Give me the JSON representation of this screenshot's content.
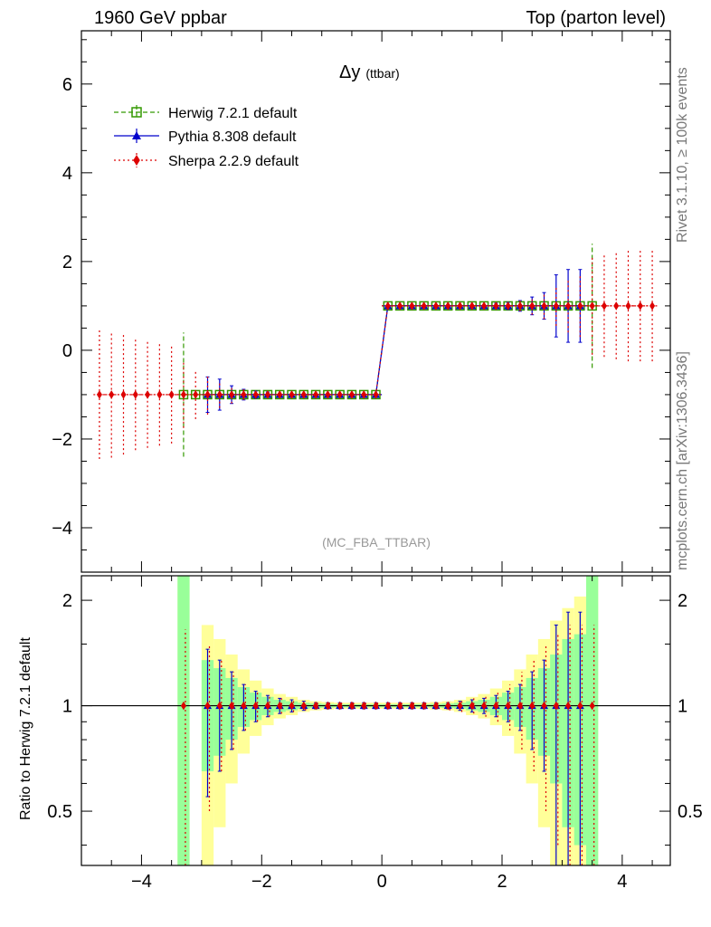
{
  "header": {
    "left": "1960 GeV ppbar",
    "right": "Top (parton level)"
  },
  "side_labels": {
    "rivet": "Rivet 3.1.10, ≥ 100k events",
    "mcplots": "mcplots.cern.ch [arXiv:1306.3436]"
  },
  "chart_data": [
    {
      "type": "scatter",
      "title": "Δy",
      "title_suffix": "(ttbar)",
      "watermark": "(MC_FBA_TTBAR)",
      "xlim": [
        -5.0,
        4.8
      ],
      "ylim": [
        -5.0,
        7.2
      ],
      "xticks": [
        -4,
        -2,
        0,
        2,
        4
      ],
      "xticklabels": [
        "−4",
        "−2",
        "0",
        "2",
        "4"
      ],
      "yticks": [
        -4,
        -2,
        0,
        2,
        4,
        6
      ],
      "yticklabels": [
        "−4",
        "−2",
        "0",
        "2",
        "4",
        "6"
      ],
      "legend_position": "top-left",
      "series": [
        {
          "name": "Herwig 7.2.1 default",
          "color": "#339900",
          "marker": "open-square",
          "line": "dashed",
          "x": [
            -3.3,
            -3.1,
            -2.9,
            -2.7,
            -2.5,
            -2.3,
            -2.1,
            -1.9,
            -1.7,
            -1.5,
            -1.3,
            -1.1,
            -0.9,
            -0.7,
            -0.5,
            -0.3,
            -0.1,
            0.1,
            0.3,
            0.5,
            0.7,
            0.9,
            1.1,
            1.3,
            1.5,
            1.7,
            1.9,
            2.1,
            2.3,
            2.5,
            2.7,
            2.9,
            3.1,
            3.3,
            3.5
          ],
          "y": [
            -1,
            -1,
            -1,
            -1,
            -1,
            -1,
            -1,
            -1,
            -1,
            -1,
            -1,
            -1,
            -1,
            -1,
            -1,
            -1,
            -1,
            1,
            1,
            1,
            1,
            1,
            1,
            1,
            1,
            1,
            1,
            1,
            1,
            1,
            1,
            1,
            1,
            1,
            1
          ],
          "err": [
            1.4,
            0.02,
            0.02,
            0.02,
            0.02,
            0.02,
            0.02,
            0.02,
            0.02,
            0.02,
            0.02,
            0.02,
            0.02,
            0.02,
            0.02,
            0.02,
            0.02,
            0.02,
            0.02,
            0.02,
            0.02,
            0.02,
            0.02,
            0.02,
            0.02,
            0.02,
            0.02,
            0.02,
            0.02,
            0.02,
            0.02,
            0.02,
            0.02,
            0.02,
            1.4
          ]
        },
        {
          "name": "Pythia 8.308 default",
          "color": "#0000cc",
          "marker": "filled-triangle",
          "line": "solid",
          "x": [
            -2.9,
            -2.7,
            -2.5,
            -2.3,
            -2.1,
            -1.9,
            -1.7,
            -1.5,
            -1.3,
            -1.1,
            -0.9,
            -0.7,
            -0.5,
            -0.3,
            -0.1,
            0.1,
            0.3,
            0.5,
            0.7,
            0.9,
            1.1,
            1.3,
            1.5,
            1.7,
            1.9,
            2.1,
            2.3,
            2.5,
            2.7,
            2.9,
            3.1,
            3.3
          ],
          "y": [
            -1,
            -1,
            -1,
            -1,
            -1,
            -1,
            -1,
            -1,
            -1,
            -1,
            -1,
            -1,
            -1,
            -1,
            -1,
            1,
            1,
            1,
            1,
            1,
            1,
            1,
            1,
            1,
            1,
            1,
            1,
            1,
            1,
            1,
            1,
            1
          ],
          "err": [
            0.4,
            0.35,
            0.2,
            0.12,
            0.08,
            0.06,
            0.05,
            0.04,
            0.03,
            0.03,
            0.03,
            0.03,
            0.03,
            0.03,
            0.03,
            0.03,
            0.03,
            0.03,
            0.03,
            0.03,
            0.03,
            0.03,
            0.04,
            0.05,
            0.06,
            0.08,
            0.12,
            0.2,
            0.3,
            0.7,
            0.82,
            0.82
          ]
        },
        {
          "name": "Sherpa 2.2.9 default",
          "color": "#dd0000",
          "marker": "filled-diamond",
          "line": "dotted",
          "x": [
            -4.7,
            -4.5,
            -4.3,
            -4.1,
            -3.9,
            -3.7,
            -3.5,
            -3.3,
            -3.1,
            -2.9,
            -2.7,
            -2.5,
            -2.3,
            -2.1,
            -1.9,
            -1.7,
            -1.5,
            -1.3,
            -1.1,
            -0.9,
            -0.7,
            -0.5,
            -0.3,
            -0.1,
            0.1,
            0.3,
            0.5,
            0.7,
            0.9,
            1.1,
            1.3,
            1.5,
            1.7,
            1.9,
            2.1,
            2.3,
            2.5,
            2.7,
            2.9,
            3.1,
            3.3,
            3.5,
            3.7,
            3.9,
            4.1,
            4.3,
            4.5
          ],
          "y": [
            -1,
            -1,
            -1,
            -1,
            -1,
            -1,
            -1,
            -1,
            -1,
            -1,
            -1,
            -1,
            -1,
            -1,
            -1,
            -1,
            -1,
            -1,
            -1,
            -1,
            -1,
            -1,
            -1,
            -1,
            1,
            1,
            1,
            1,
            1,
            1,
            1,
            1,
            1,
            1,
            1,
            1,
            1,
            1,
            1,
            1,
            1,
            1,
            1,
            1,
            1,
            1,
            1
          ],
          "err": [
            1.45,
            1.42,
            1.35,
            1.25,
            1.2,
            1.15,
            1.1,
            0.75,
            0.55,
            0.45,
            0.3,
            0.2,
            0.12,
            0.08,
            0.06,
            0.05,
            0.04,
            0.03,
            0.03,
            0.03,
            0.03,
            0.03,
            0.03,
            0.03,
            0.03,
            0.03,
            0.03,
            0.03,
            0.03,
            0.03,
            0.03,
            0.04,
            0.05,
            0.06,
            0.08,
            0.12,
            0.2,
            0.3,
            0.45,
            0.6,
            0.7,
            1.1,
            1.15,
            1.2,
            1.25,
            1.25,
            1.25
          ]
        }
      ]
    },
    {
      "type": "scatter",
      "ylabel": "Ratio to Herwig 7.2.1 default",
      "xlim": [
        -5.0,
        4.8
      ],
      "ylim": [
        0.35,
        2.35
      ],
      "xticks": [
        -4,
        -2,
        0,
        2,
        4
      ],
      "xticklabels": [
        "−4",
        "−2",
        "0",
        "2",
        "4"
      ],
      "yticks": [
        0.5,
        1,
        2
      ],
      "yticklabels": [
        "0.5",
        "1",
        "2"
      ],
      "reference_line": 1.0,
      "bands": {
        "x": [
          -3.3,
          -2.9,
          -2.7,
          -2.5,
          -2.3,
          -2.1,
          -1.9,
          -1.7,
          -1.5,
          -1.3,
          -1.1,
          -0.9,
          -0.7,
          -0.5,
          -0.3,
          -0.1,
          0.1,
          0.3,
          0.5,
          0.7,
          0.9,
          1.1,
          1.3,
          1.5,
          1.7,
          1.9,
          2.1,
          2.3,
          2.5,
          2.7,
          2.9,
          3.1,
          3.3,
          3.5
        ],
        "green_halfwidth": [
          2.0,
          0.35,
          0.28,
          0.2,
          0.13,
          0.09,
          0.06,
          0.04,
          0.03,
          0.02,
          0.015,
          0.012,
          0.01,
          0.01,
          0.01,
          0.01,
          0.01,
          0.01,
          0.01,
          0.01,
          0.012,
          0.015,
          0.02,
          0.03,
          0.04,
          0.06,
          0.09,
          0.13,
          0.2,
          0.28,
          0.4,
          0.55,
          0.6,
          2.0
        ],
        "yellow_halfwidth": [
          2.0,
          0.7,
          0.55,
          0.4,
          0.27,
          0.18,
          0.12,
          0.08,
          0.06,
          0.04,
          0.03,
          0.025,
          0.02,
          0.02,
          0.02,
          0.02,
          0.02,
          0.02,
          0.02,
          0.02,
          0.025,
          0.03,
          0.04,
          0.06,
          0.08,
          0.12,
          0.18,
          0.27,
          0.4,
          0.55,
          0.75,
          0.9,
          1.05,
          2.0
        ]
      },
      "series": [
        {
          "name": "Pythia 8.308 default",
          "color": "#0000cc",
          "x": [
            -2.9,
            -2.7,
            -2.5,
            -2.3,
            -2.1,
            -1.9,
            -1.7,
            -1.5,
            -1.3,
            -1.1,
            -0.9,
            -0.7,
            -0.5,
            -0.3,
            -0.1,
            0.1,
            0.3,
            0.5,
            0.7,
            0.9,
            1.1,
            1.3,
            1.5,
            1.7,
            1.9,
            2.1,
            2.3,
            2.5,
            2.7,
            2.9,
            3.1,
            3.3
          ],
          "y": [
            1,
            1,
            1,
            1,
            1,
            1,
            1,
            1,
            1,
            1,
            1,
            1,
            1,
            1,
            1,
            1,
            1,
            1,
            1,
            1,
            1,
            1,
            1,
            1,
            1,
            1,
            1,
            1,
            1,
            1,
            1,
            1
          ],
          "err": [
            0.45,
            0.35,
            0.25,
            0.15,
            0.1,
            0.07,
            0.05,
            0.04,
            0.03,
            0.02,
            0.02,
            0.02,
            0.02,
            0.02,
            0.02,
            0.02,
            0.02,
            0.02,
            0.02,
            0.02,
            0.02,
            0.03,
            0.04,
            0.05,
            0.07,
            0.1,
            0.15,
            0.25,
            0.35,
            0.7,
            0.85,
            0.85
          ]
        },
        {
          "name": "Sherpa 2.2.9 default",
          "color": "#dd0000",
          "x": [
            -3.3,
            -2.9,
            -2.7,
            -2.5,
            -2.3,
            -2.1,
            -1.9,
            -1.7,
            -1.5,
            -1.3,
            -1.1,
            -0.9,
            -0.7,
            -0.5,
            -0.3,
            -0.1,
            0.1,
            0.3,
            0.5,
            0.7,
            0.9,
            1.1,
            1.3,
            1.5,
            1.7,
            1.9,
            2.1,
            2.3,
            2.5,
            2.7,
            2.9,
            3.1,
            3.3,
            3.5
          ],
          "y": [
            1,
            1,
            1,
            1,
            1,
            1,
            1,
            1,
            1,
            1,
            1,
            1,
            1,
            1,
            1,
            1,
            1,
            1,
            1,
            1,
            1,
            1,
            1,
            1,
            1,
            1,
            1,
            1,
            1,
            1,
            1,
            1,
            1,
            1
          ],
          "err": [
            0.65,
            0.5,
            0.35,
            0.25,
            0.15,
            0.1,
            0.07,
            0.05,
            0.04,
            0.03,
            0.02,
            0.02,
            0.02,
            0.02,
            0.02,
            0.02,
            0.02,
            0.02,
            0.02,
            0.02,
            0.02,
            0.03,
            0.04,
            0.05,
            0.07,
            0.1,
            0.15,
            0.25,
            0.35,
            0.5,
            0.6,
            0.7,
            0.7,
            0.7
          ]
        }
      ]
    }
  ]
}
